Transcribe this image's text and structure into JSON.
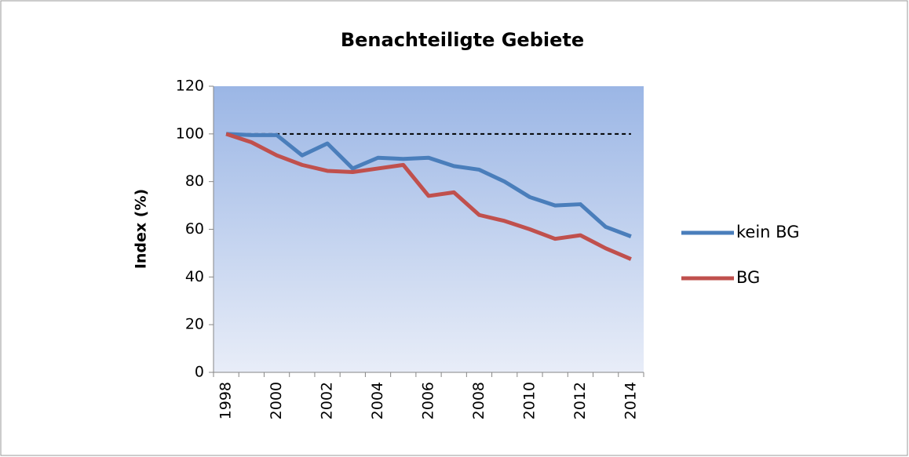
{
  "chart_data": {
    "type": "line",
    "title": "Benachteiligte Gebiete",
    "ylabel": "Index (%)",
    "categories": [
      "1998",
      null,
      "2000",
      null,
      "2002",
      null,
      "2004",
      null,
      "2006",
      null,
      "2008",
      null,
      "2010",
      null,
      "2012",
      null,
      "2014"
    ],
    "series": [
      {
        "name": "kein BG",
        "color": "#4a7ebb",
        "values": [
          100,
          99.5,
          99.5,
          91,
          96,
          85.5,
          90,
          89.5,
          90,
          86.5,
          85,
          80,
          73.5,
          70,
          70.5,
          61,
          57
        ]
      },
      {
        "name": "BG",
        "color": "#c0504d",
        "values": [
          100,
          96.5,
          91,
          87,
          84.5,
          84,
          85.5,
          87,
          74,
          75.5,
          66,
          63.5,
          60,
          56,
          57.5,
          52,
          47.5
        ]
      }
    ],
    "reference_line": 100,
    "ylim": [
      0,
      120
    ],
    "yticks": [
      0,
      20,
      40,
      60,
      80,
      100,
      120
    ],
    "legend": "right"
  }
}
